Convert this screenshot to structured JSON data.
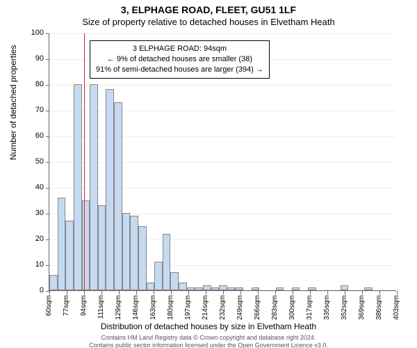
{
  "title_line1": "3, ELPHAGE ROAD, FLEET, GU51 1LF",
  "title_line2": "Size of property relative to detached houses in Elvetham Heath",
  "chart": {
    "type": "histogram",
    "ylim": [
      0,
      100
    ],
    "ytick_step": 10,
    "bar_color": "#c5d9f1",
    "bar_border": "#888888",
    "marker_color": "#c62828",
    "marker_x_index": 2,
    "infobox": {
      "line1": "3 ELPHAGE ROAD: 94sqm",
      "line2": "← 9% of detached houses are smaller (38)",
      "line3": "91% of semi-detached houses are larger (394) →"
    },
    "x_categories": [
      "60sqm",
      "77sqm",
      "94sqm",
      "111sqm",
      "129sqm",
      "146sqm",
      "163sqm",
      "180sqm",
      "197sqm",
      "214sqm",
      "232sqm",
      "249sqm",
      "266sqm",
      "283sqm",
      "300sqm",
      "317sqm",
      "335sqm",
      "352sqm",
      "369sqm",
      "386sqm",
      "403sqm"
    ],
    "bars": [
      6,
      36,
      27,
      80,
      35,
      80,
      33,
      78,
      73,
      30,
      29,
      25,
      3,
      11,
      22,
      7,
      3,
      1,
      1,
      2,
      1,
      2,
      1,
      1,
      0,
      1,
      0,
      0,
      1,
      0,
      1,
      0,
      1,
      0,
      0,
      0,
      2,
      0,
      0,
      1,
      0,
      0,
      0
    ],
    "xlabel": "Distribution of detached houses by size in Elvetham Heath",
    "ylabel": "Number of detached properties"
  },
  "footer_line1": "Contains HM Land Registry data © Crown copyright and database right 2024.",
  "footer_line2": "Contains public sector information licensed under the Open Government Licence v3.0."
}
